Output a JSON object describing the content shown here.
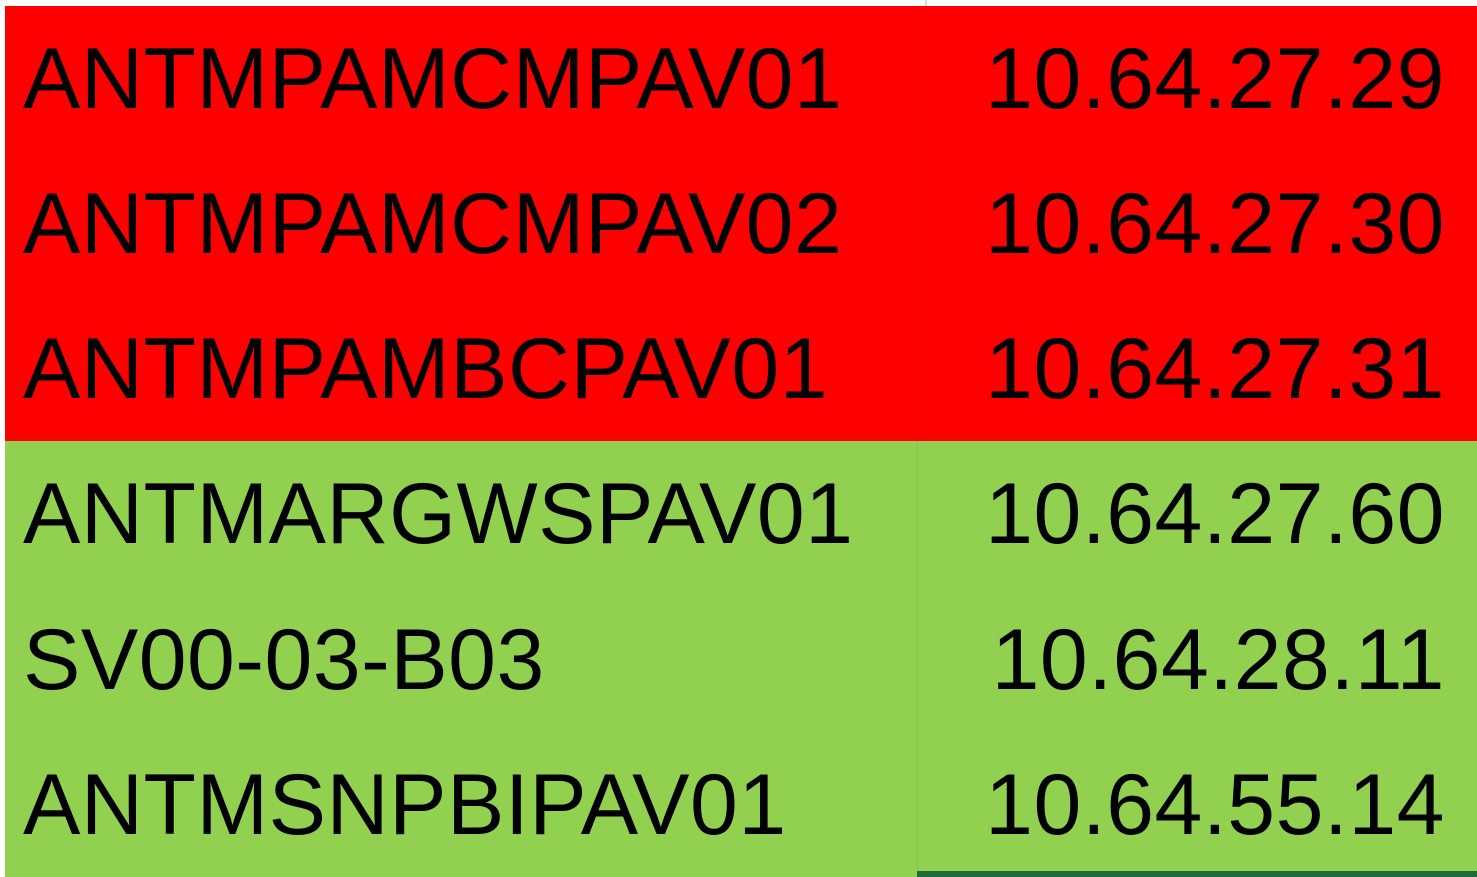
{
  "colors": {
    "flagged_fill": "#ff0000",
    "ok_fill": "#92d050",
    "selection_border": "#1e6b3c"
  },
  "rows": [
    {
      "hostname": "ANTMPAMCMPAV01",
      "ip": "10.64.27.29",
      "fill": "#ff0000"
    },
    {
      "hostname": "ANTMPAMCMPAV02",
      "ip": "10.64.27.30",
      "fill": "#ff0000"
    },
    {
      "hostname": "ANTMPAMBCPAV01",
      "ip": "10.64.27.31",
      "fill": "#ff0000"
    },
    {
      "hostname": "ANTMARGWSPAV01",
      "ip": "10.64.27.60",
      "fill": "#92d050"
    },
    {
      "hostname": "SV00-03-B03",
      "ip": "10.64.28.11",
      "fill": "#92d050"
    },
    {
      "hostname": "ANTMSNPBIPAV01",
      "ip": "10.64.55.14",
      "fill": "#92d050"
    }
  ]
}
